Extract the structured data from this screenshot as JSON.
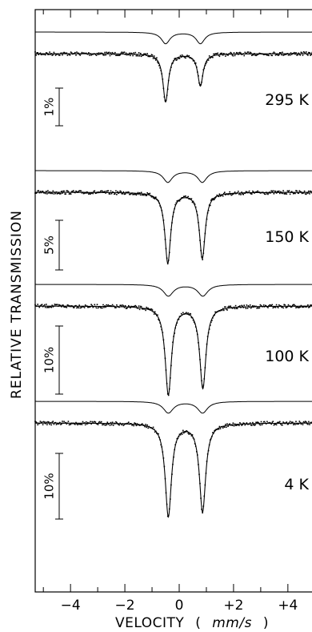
{
  "chart_data": {
    "type": "line",
    "title": "",
    "xlabel": "VELOCITY",
    "xlabel_unit_open": "(",
    "xlabel_unit": "mm/s",
    "xlabel_unit_close": ")",
    "ylabel": "RELATIVE TRANSMISSION",
    "xlim": [
      -5.3,
      5.3
    ],
    "x_ticks": [
      {
        "value": -4,
        "label": "−4"
      },
      {
        "value": -2,
        "label": "−2"
      },
      {
        "value": 0,
        "label": "0"
      },
      {
        "value": 2,
        "label": "+2"
      },
      {
        "value": 4,
        "label": "+4"
      }
    ],
    "grid": false,
    "panels": [
      {
        "label": "295 K",
        "scale_bar": "1%",
        "peaks": [
          {
            "center": -0.5,
            "width": 0.12,
            "depth": 6.0
          },
          {
            "center": 0.78,
            "width": 0.12,
            "depth": 4.0
          }
        ]
      },
      {
        "label": "150 K",
        "scale_bar": "5%",
        "peaks": [
          {
            "center": -0.42,
            "width": 0.13,
            "depth": 8.8
          },
          {
            "center": 0.85,
            "width": 0.13,
            "depth": 8.2
          }
        ]
      },
      {
        "label": "100 K",
        "scale_bar": "10%",
        "peaks": [
          {
            "center": -0.4,
            "width": 0.14,
            "depth": 11.0
          },
          {
            "center": 0.87,
            "width": 0.14,
            "depth": 10.2
          }
        ]
      },
      {
        "label": "4 K",
        "scale_bar": "10%",
        "peaks": [
          {
            "center": -0.4,
            "width": 0.14,
            "depth": 11.6
          },
          {
            "center": 0.86,
            "width": 0.14,
            "depth": 11.0
          }
        ]
      }
    ]
  }
}
